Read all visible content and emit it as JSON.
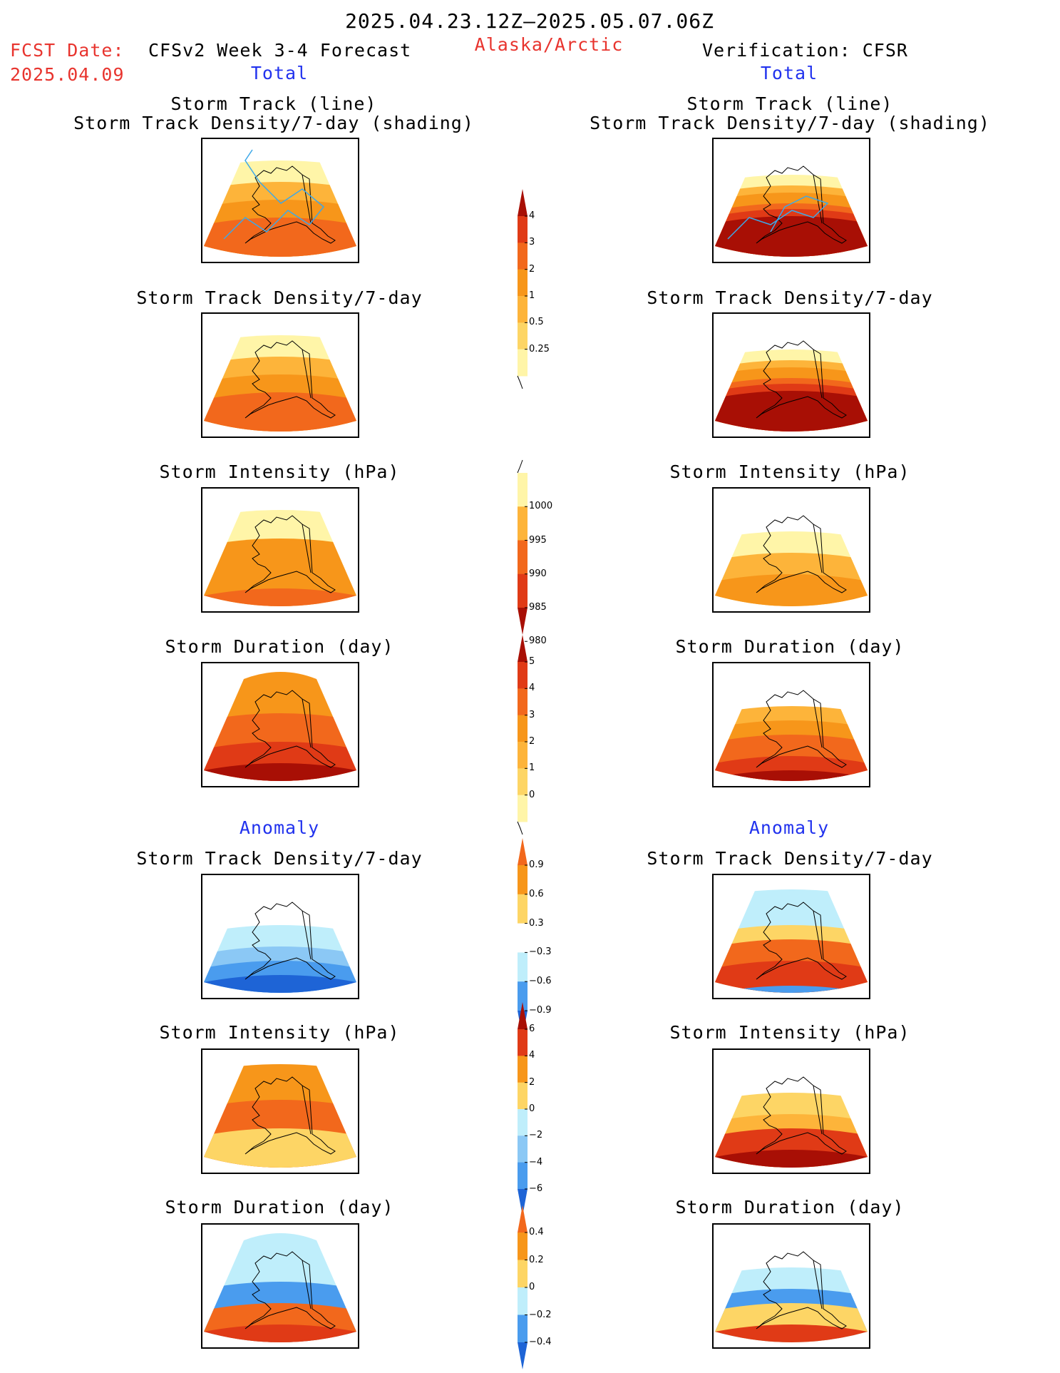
{
  "header": {
    "date_range": "2025.04.23.12Z–2025.05.07.06Z",
    "fcst_label": "FCST Date:",
    "fcst_date": "2025.04.09",
    "model_title": "CFSv2 Week 3-4 Forecast",
    "region": "Alaska/Arctic",
    "verification": "Verification: CFSR",
    "left_subtitle": "Total",
    "right_subtitle": "Total",
    "left_anomaly": "Anomaly",
    "right_anomaly": "Anomaly"
  },
  "panels": {
    "row1_title_line1": "Storm Track (line)",
    "row1_title_line2": "Storm Track Density/7-day (shading)",
    "row2_title": "Storm Track Density/7-day",
    "row3_title": "Storm Intensity (hPa)",
    "row4_title": "Storm Duration (day)",
    "row5_title": "Storm Track Density/7-day",
    "row6_title": "Storm Intensity (hPa)",
    "row7_title": "Storm Duration (day)"
  },
  "colorbars": {
    "density": [
      "4",
      "3",
      "2",
      "1",
      "0.5",
      "0.25"
    ],
    "intensity": [
      "1000",
      "995",
      "990",
      "985",
      "980"
    ],
    "duration": [
      "5",
      "4",
      "3",
      "2",
      "1",
      "0"
    ],
    "density_anom": [
      "0.9",
      "0.6",
      "0.3",
      "−0.3",
      "−0.6",
      "−0.9"
    ],
    "intensity_anom": [
      "6",
      "4",
      "2",
      "0",
      "−2",
      "−4",
      "−6"
    ],
    "duration_anom": [
      "0.4",
      "0.2",
      "0",
      "−0.2",
      "−0.4"
    ]
  },
  "colors": {
    "yellow_light": "#fff5a8",
    "yellow": "#fdd565",
    "orange_light": "#fdb43a",
    "orange": "#f7961a",
    "orange_dark": "#f2681c",
    "red": "#e03a16",
    "red_dark": "#a80f05",
    "blue_light": "#bfeefb",
    "blue_mid": "#8bc8f5",
    "blue": "#4a9cee",
    "blue_dark": "#1e64d6",
    "track_line": "#3da8e8"
  }
}
